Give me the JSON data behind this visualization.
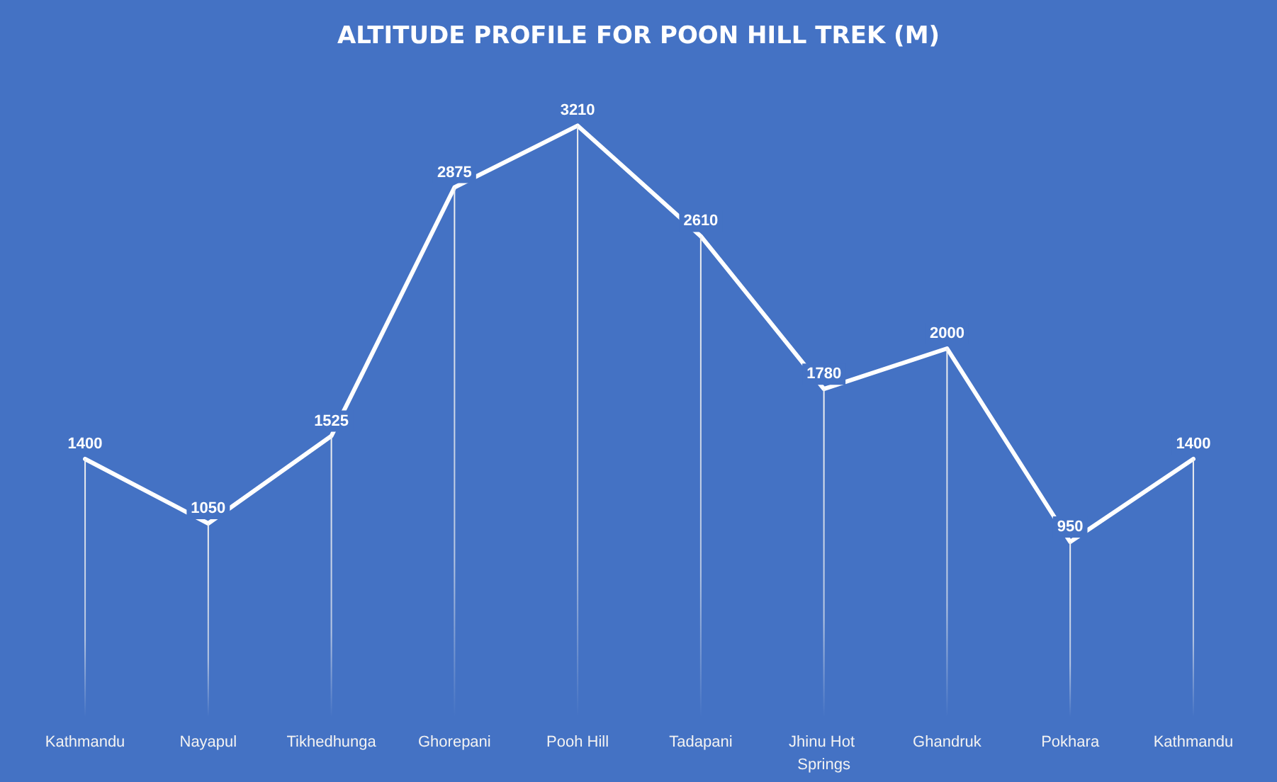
{
  "chart_data": {
    "type": "line",
    "title": "ALTITUDE PROFILE FOR POON HILL TREK (M)",
    "categories": [
      "Kathmandu",
      "Nayapul",
      "Tikhedhunga",
      "Ghorepani",
      "Pooh Hill",
      "Tadapani",
      "Jhinu Hot Springs",
      "Ghandruk",
      "Pokhara",
      "Kathmandu"
    ],
    "series": [
      {
        "color": "#ffffff",
        "values": [
          1400,
          1050,
          1525,
          2875,
          3210,
          2610,
          1780,
          2000,
          950,
          1400
        ],
        "value_labels": [
          "1400",
          "1050",
          "1525",
          "2875",
          "3210",
          "2610",
          "1780",
          "2000",
          "950",
          "1400"
        ]
      },
      {
        "type": "bar",
        "color": "#f0f0f0",
        "values": [
          1400,
          1050,
          1525,
          2875,
          3210,
          2610,
          1780,
          2000,
          950,
          1400
        ]
      }
    ],
    "marker": "none",
    "line_style": "solid"
  }
}
